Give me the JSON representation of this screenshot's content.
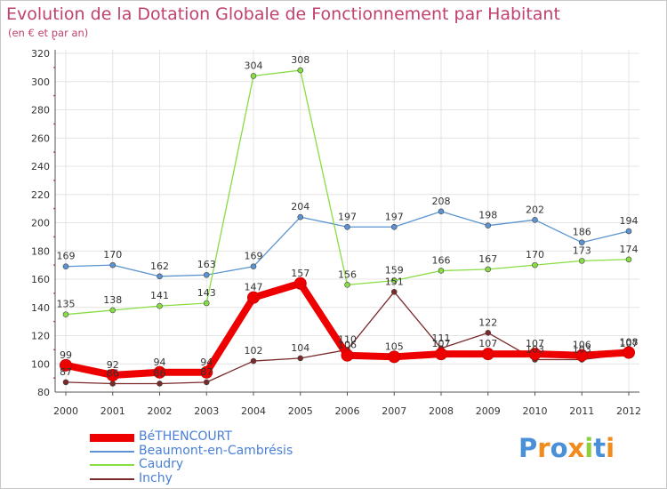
{
  "title": "Evolution de la Dotation Globale de Fonctionnement par Habitant",
  "subtitle": "(en € et par an)",
  "logo": "Proxiti",
  "chart_data": {
    "type": "line",
    "title": "Evolution de la Dotation Globale de Fonctionnement par Habitant",
    "subtitle": "(en € et par an)",
    "xlabel": "",
    "ylabel": "",
    "ylim": [
      80,
      320
    ],
    "yticks": [
      80,
      100,
      120,
      140,
      160,
      180,
      200,
      220,
      240,
      260,
      280,
      300,
      320
    ],
    "grid": true,
    "legend_position": "bottom-left",
    "x": [
      "2000",
      "2001",
      "2002",
      "2003",
      "2004",
      "2005",
      "2006",
      "2007",
      "2008",
      "2009",
      "2010",
      "2011",
      "2012"
    ],
    "series": [
      {
        "name": "BéTHENCOURT",
        "color": "#ee0000",
        "emphasis": true,
        "values": [
          99,
          92,
          94,
          94,
          147,
          157,
          106,
          105,
          107,
          107,
          107,
          106,
          108
        ]
      },
      {
        "name": "Beaumont-en-Cambrésis",
        "color": "#5b94d0",
        "emphasis": false,
        "values": [
          169,
          170,
          162,
          163,
          169,
          204,
          197,
          197,
          208,
          198,
          202,
          186,
          194
        ]
      },
      {
        "name": "Caudry",
        "color": "#88dd44",
        "emphasis": false,
        "values": [
          135,
          138,
          141,
          143,
          304,
          308,
          156,
          159,
          166,
          167,
          170,
          173,
          174
        ]
      },
      {
        "name": "Inchy",
        "color": "#7a2a2a",
        "emphasis": false,
        "values": [
          87,
          86,
          86,
          87,
          102,
          104,
          110,
          151,
          111,
          122,
          103,
          103,
          107
        ]
      }
    ]
  }
}
